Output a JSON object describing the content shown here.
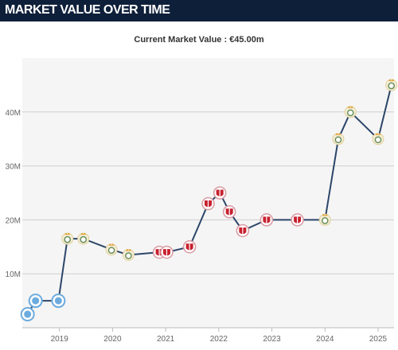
{
  "header": {
    "title": "MARKET VALUE OVER TIME"
  },
  "chart_data": {
    "type": "line",
    "title": "Current Market Value : €45.00m",
    "x_ticks": [
      "2019",
      "2020",
      "2021",
      "2022",
      "2023",
      "2024",
      "2025"
    ],
    "y_ticks": [
      "10M",
      "20M",
      "30M",
      "40M"
    ],
    "xlim": [
      2018.3,
      2025.3
    ],
    "ylim": [
      0,
      50
    ],
    "grid": "horizontal",
    "line_color": "#2c4669",
    "club_colors": {
      "man-city": "#6cabdd",
      "real-madrid": "#c8a03c",
      "atletico": "#c8202f"
    },
    "series": [
      {
        "points": [
          {
            "x": 2018.4,
            "y": 2.5,
            "club": "man-city"
          },
          {
            "x": 2018.55,
            "y": 5.0,
            "club": "man-city"
          },
          {
            "x": 2018.98,
            "y": 5.0,
            "club": "man-city"
          },
          {
            "x": 2019.15,
            "y": 16.5,
            "club": "real-madrid"
          },
          {
            "x": 2019.45,
            "y": 16.5,
            "club": "real-madrid"
          },
          {
            "x": 2019.98,
            "y": 14.5,
            "club": "real-madrid"
          },
          {
            "x": 2020.3,
            "y": 13.5,
            "club": "real-madrid"
          },
          {
            "x": 2020.88,
            "y": 14.0,
            "club": "atletico"
          },
          {
            "x": 2021.02,
            "y": 14.0,
            "club": "atletico"
          },
          {
            "x": 2021.45,
            "y": 15.0,
            "club": "atletico"
          },
          {
            "x": 2021.8,
            "y": 23.0,
            "club": "atletico"
          },
          {
            "x": 2022.02,
            "y": 25.0,
            "club": "atletico"
          },
          {
            "x": 2022.2,
            "y": 21.5,
            "club": "atletico"
          },
          {
            "x": 2022.45,
            "y": 18.0,
            "club": "atletico"
          },
          {
            "x": 2022.9,
            "y": 20.0,
            "club": "atletico"
          },
          {
            "x": 2023.48,
            "y": 20.0,
            "club": "atletico"
          },
          {
            "x": 2024.0,
            "y": 20.0,
            "club": "real-madrid"
          },
          {
            "x": 2024.25,
            "y": 35.0,
            "club": "real-madrid"
          },
          {
            "x": 2024.48,
            "y": 40.0,
            "club": "real-madrid"
          },
          {
            "x": 2025.0,
            "y": 35.0,
            "club": "real-madrid"
          },
          {
            "x": 2025.25,
            "y": 45.0,
            "club": "real-madrid"
          }
        ]
      }
    ]
  }
}
